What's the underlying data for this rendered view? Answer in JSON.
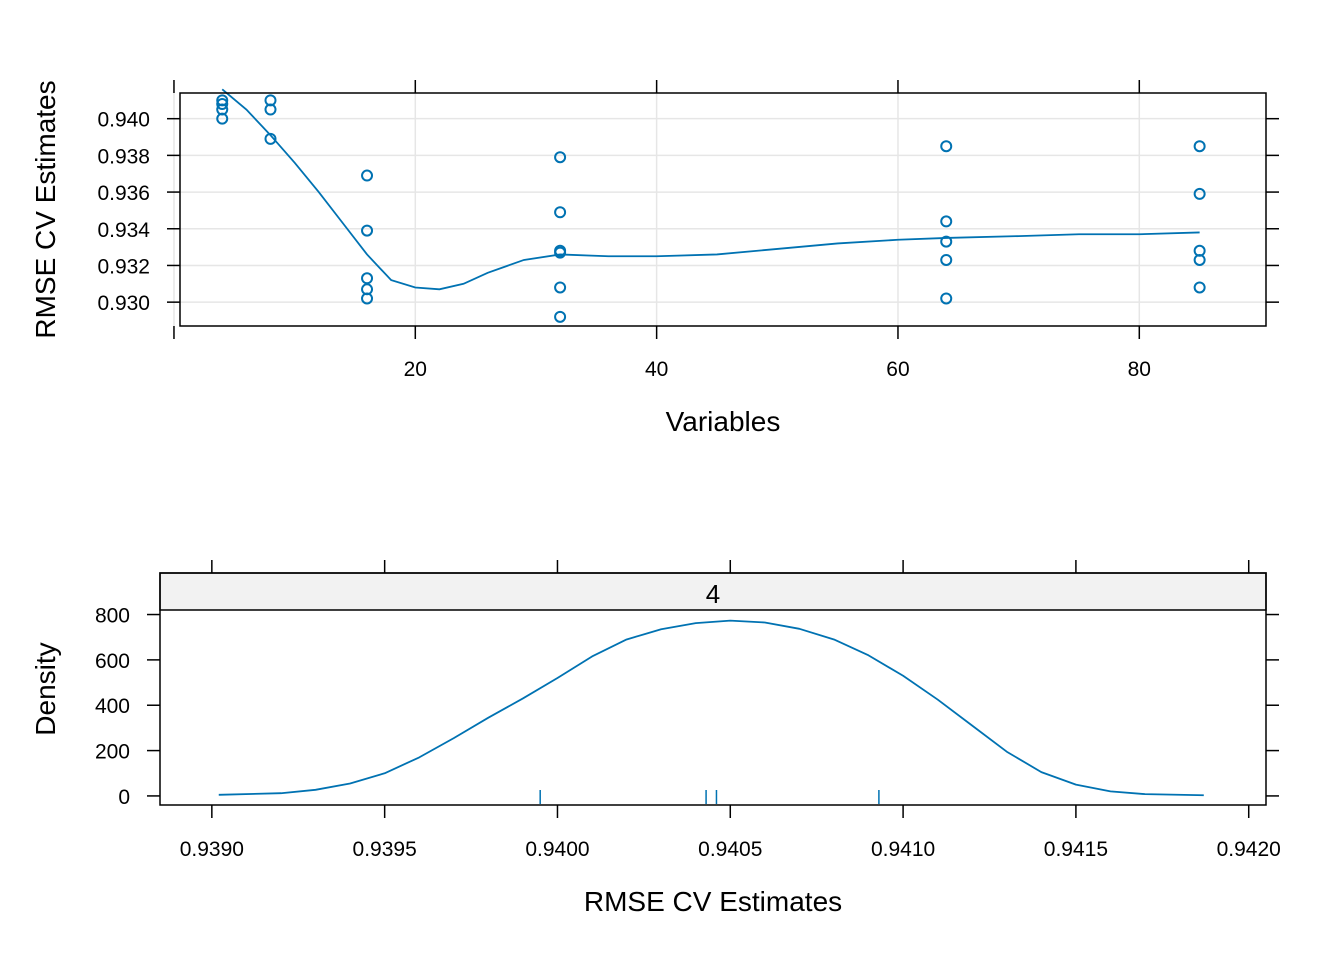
{
  "colors": {
    "series": "#0072B2",
    "grid": "#E6E6E6",
    "strip_fill": "#F2F2F2",
    "frame": "#000000",
    "background": "#FFFFFF"
  },
  "chart_data": [
    {
      "type": "scatter",
      "xlabel": "Variables",
      "ylabel": "RMSE CV Estimates",
      "xlim": [
        0.5,
        90.5
      ],
      "ylim": [
        0.9287,
        0.9414
      ],
      "x_ticks": [
        20,
        40,
        60,
        80
      ],
      "x_tick_labels": [
        "20",
        "40",
        "60",
        "80"
      ],
      "x_top_ticks": [
        0,
        20,
        40,
        60,
        80
      ],
      "y_ticks": [
        0.93,
        0.932,
        0.934,
        0.936,
        0.938,
        0.94
      ],
      "y_tick_labels": [
        "0.930",
        "0.932",
        "0.934",
        "0.936",
        "0.938",
        "0.940"
      ],
      "grid": true,
      "points": [
        {
          "x": 4,
          "y": 0.941
        },
        {
          "x": 4,
          "y": 0.9408
        },
        {
          "x": 4,
          "y": 0.9405
        },
        {
          "x": 4,
          "y": 0.94
        },
        {
          "x": 8,
          "y": 0.941
        },
        {
          "x": 8,
          "y": 0.9405
        },
        {
          "x": 8,
          "y": 0.9389
        },
        {
          "x": 16,
          "y": 0.9369
        },
        {
          "x": 16,
          "y": 0.9339
        },
        {
          "x": 16,
          "y": 0.9313
        },
        {
          "x": 16,
          "y": 0.9307
        },
        {
          "x": 16,
          "y": 0.9302
        },
        {
          "x": 32,
          "y": 0.9379
        },
        {
          "x": 32,
          "y": 0.9349
        },
        {
          "x": 32,
          "y": 0.9328
        },
        {
          "x": 32,
          "y": 0.9327
        },
        {
          "x": 32,
          "y": 0.9308
        },
        {
          "x": 32,
          "y": 0.9292
        },
        {
          "x": 64,
          "y": 0.9385
        },
        {
          "x": 64,
          "y": 0.9344
        },
        {
          "x": 64,
          "y": 0.9333
        },
        {
          "x": 64,
          "y": 0.9323
        },
        {
          "x": 64,
          "y": 0.9302
        },
        {
          "x": 85,
          "y": 0.9385
        },
        {
          "x": 85,
          "y": 0.9359
        },
        {
          "x": 85,
          "y": 0.9328
        },
        {
          "x": 85,
          "y": 0.9323
        },
        {
          "x": 85,
          "y": 0.9308
        }
      ],
      "smooth_line": [
        {
          "x": 4,
          "y": 0.9416
        },
        {
          "x": 6,
          "y": 0.9405
        },
        {
          "x": 8,
          "y": 0.9391
        },
        {
          "x": 10,
          "y": 0.9376
        },
        {
          "x": 12,
          "y": 0.936
        },
        {
          "x": 14,
          "y": 0.9343
        },
        {
          "x": 16,
          "y": 0.9326
        },
        {
          "x": 18,
          "y": 0.9312
        },
        {
          "x": 20,
          "y": 0.9308
        },
        {
          "x": 22,
          "y": 0.9307
        },
        {
          "x": 24,
          "y": 0.931
        },
        {
          "x": 26,
          "y": 0.9316
        },
        {
          "x": 29,
          "y": 0.9323
        },
        {
          "x": 32,
          "y": 0.9326
        },
        {
          "x": 36,
          "y": 0.9325
        },
        {
          "x": 40,
          "y": 0.9325
        },
        {
          "x": 45,
          "y": 0.9326
        },
        {
          "x": 50,
          "y": 0.9329
        },
        {
          "x": 55,
          "y": 0.9332
        },
        {
          "x": 60,
          "y": 0.9334
        },
        {
          "x": 64,
          "y": 0.9335
        },
        {
          "x": 70,
          "y": 0.9336
        },
        {
          "x": 75,
          "y": 0.9337
        },
        {
          "x": 80,
          "y": 0.9337
        },
        {
          "x": 85,
          "y": 0.9338
        }
      ]
    },
    {
      "type": "area",
      "strip_label": "4",
      "xlabel": "RMSE CV Estimates",
      "ylabel": "Density",
      "xlim": [
        0.93885,
        0.94205
      ],
      "ylim": [
        -40,
        820
      ],
      "x_ticks": [
        0.939,
        0.9395,
        0.94,
        0.9405,
        0.941,
        0.9415,
        0.942
      ],
      "x_tick_labels": [
        "0.9390",
        "0.9395",
        "0.9400",
        "0.9405",
        "0.9410",
        "0.9415",
        "0.9420"
      ],
      "y_ticks": [
        0,
        200,
        400,
        600,
        800
      ],
      "y_tick_labels": [
        "0",
        "200",
        "400",
        "600",
        "800"
      ],
      "grid": false,
      "density_curve": [
        {
          "x": 0.93902,
          "y": 5
        },
        {
          "x": 0.9392,
          "y": 12
        },
        {
          "x": 0.9393,
          "y": 27
        },
        {
          "x": 0.9394,
          "y": 55
        },
        {
          "x": 0.9395,
          "y": 100
        },
        {
          "x": 0.9396,
          "y": 170
        },
        {
          "x": 0.9397,
          "y": 255
        },
        {
          "x": 0.9398,
          "y": 345
        },
        {
          "x": 0.9399,
          "y": 430
        },
        {
          "x": 0.94,
          "y": 520
        },
        {
          "x": 0.9401,
          "y": 615
        },
        {
          "x": 0.9402,
          "y": 690
        },
        {
          "x": 0.9403,
          "y": 735
        },
        {
          "x": 0.9404,
          "y": 762
        },
        {
          "x": 0.9405,
          "y": 773
        },
        {
          "x": 0.9406,
          "y": 765
        },
        {
          "x": 0.9407,
          "y": 737
        },
        {
          "x": 0.9408,
          "y": 690
        },
        {
          "x": 0.9409,
          "y": 620
        },
        {
          "x": 0.941,
          "y": 530
        },
        {
          "x": 0.9411,
          "y": 425
        },
        {
          "x": 0.9412,
          "y": 310
        },
        {
          "x": 0.9413,
          "y": 195
        },
        {
          "x": 0.9414,
          "y": 105
        },
        {
          "x": 0.9415,
          "y": 50
        },
        {
          "x": 0.9416,
          "y": 20
        },
        {
          "x": 0.9417,
          "y": 8
        },
        {
          "x": 0.94187,
          "y": 3
        }
      ],
      "rug": [
        0.93995,
        0.94043,
        0.94046,
        0.94093
      ]
    }
  ]
}
